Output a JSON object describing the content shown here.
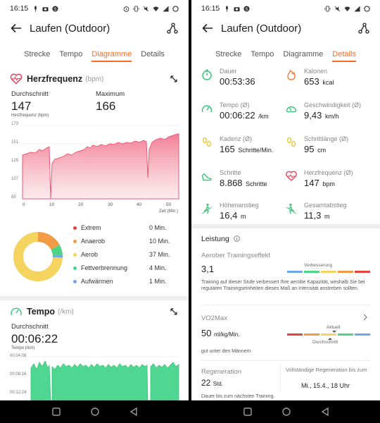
{
  "status": {
    "time": "16:15"
  },
  "left": {
    "title": "Laufen (Outdoor)",
    "tabs": [
      "Strecke",
      "Tempo",
      "Diagramme",
      "Details"
    ],
    "active_tab": 2,
    "hr": {
      "title": "Herzfrequenz",
      "unit": "(bpm)",
      "avg_label": "Durchschnitt",
      "avg": "147",
      "max_label": "Maximum",
      "max": "166",
      "axis_label": "Herzfrequenz (bpm)",
      "y_ticks": [
        "173",
        "151",
        "129",
        "107",
        "85"
      ],
      "x_ticks": [
        "0",
        "10",
        "20",
        "30",
        "40",
        "50"
      ],
      "x_unit": "Zeit (Min.)",
      "accent": "#f08aa0"
    },
    "zones": [
      {
        "name": "Extrem",
        "value": "0 Min.",
        "color": "#e8403b"
      },
      {
        "name": "Anaerob",
        "value": "10 Min.",
        "color": "#f29b47"
      },
      {
        "name": "Aerob",
        "value": "37 Min.",
        "color": "#f4d35e"
      },
      {
        "name": "Fettverbrennung",
        "value": "4 Min.",
        "color": "#4cd487"
      },
      {
        "name": "Aufwärmen",
        "value": "1 Min.",
        "color": "#6aa8e8"
      }
    ],
    "pace": {
      "title": "Tempo",
      "unit": "(/km)",
      "avg_label": "Durchschnitt",
      "avg": "00:06:22",
      "axis_label": "Tempo (/km)",
      "y_ticks": [
        "00:04:08",
        "00:08:16",
        "00:12:24"
      ],
      "accent": "#3cd486"
    }
  },
  "right": {
    "title": "Laufen (Outdoor)",
    "tabs": [
      "Strecke",
      "Tempo",
      "Diagramme",
      "Details"
    ],
    "active_tab": 3,
    "metrics": [
      {
        "label": "Dauer",
        "value": "00:53:36",
        "unit": "",
        "icon": "stopwatch-icon",
        "color": "#3cc47a"
      },
      {
        "label": "Kalorien",
        "value": "653",
        "unit": "kcal",
        "icon": "flame-icon",
        "color": "#f07a3a"
      },
      {
        "label": "Tempo (Ø)",
        "value": "00:06:22",
        "unit": "/km",
        "icon": "gauge-icon",
        "color": "#3cc47a"
      },
      {
        "label": "Geschwindigkeit (Ø)",
        "value": "9,43",
        "unit": "km/h",
        "icon": "speedometer-icon",
        "color": "#3cc47a"
      },
      {
        "label": "Kadenz (Ø)",
        "value": "165",
        "unit": "Schritte/Min.",
        "icon": "footprints-icon",
        "color": "#e6c228"
      },
      {
        "label": "Schrittlänge (Ø)",
        "value": "95",
        "unit": "cm",
        "icon": "footprints-icon",
        "color": "#e6c228"
      },
      {
        "label": "Schritte",
        "value": "8.868",
        "unit": "Schritte",
        "icon": "shoe-icon",
        "color": "#3cc47a"
      },
      {
        "label": "Herzfrequenz (Ø)",
        "value": "147",
        "unit": "bpm",
        "icon": "heart-icon",
        "color": "#e8405a"
      },
      {
        "label": "Höhenanstieg",
        "value": "16,4",
        "unit": "m",
        "icon": "climb-icon",
        "color": "#3cc47a"
      },
      {
        "label": "Gesamtabstieg",
        "value": "11,3",
        "unit": "m",
        "icon": "descent-icon",
        "color": "#3cc47a"
      }
    ],
    "leistung": {
      "title": "Leistung",
      "aerob_title": "Aerober Trainingseffekt",
      "aerob_value": "3,1",
      "aerob_scale_label": "Verbesserung",
      "aerob_note": "Training auf dieser Stufe verbessert Ihre aerobe Kapazität, weshalb Sie bei regulären Trainingseinheiten dieses Maß an Intensität anstreben sollten.",
      "vo2_title": "VO2Max",
      "vo2_value": "50",
      "vo2_unit": "ml/kg/Min.",
      "vo2_current": "Aktuell",
      "vo2_avg": "Durchschnitt",
      "vo2_note": "gut unter den Männern",
      "regen_title": "Regeneration",
      "regen_value": "22",
      "regen_unit": "Std.",
      "regen_full_label": "Vollständige Regeneration bis zum",
      "regen_full_value": "Mi., 15.4., 18 Uhr",
      "regen_note": "Dauer bis zum nächsten Training."
    }
  }
}
